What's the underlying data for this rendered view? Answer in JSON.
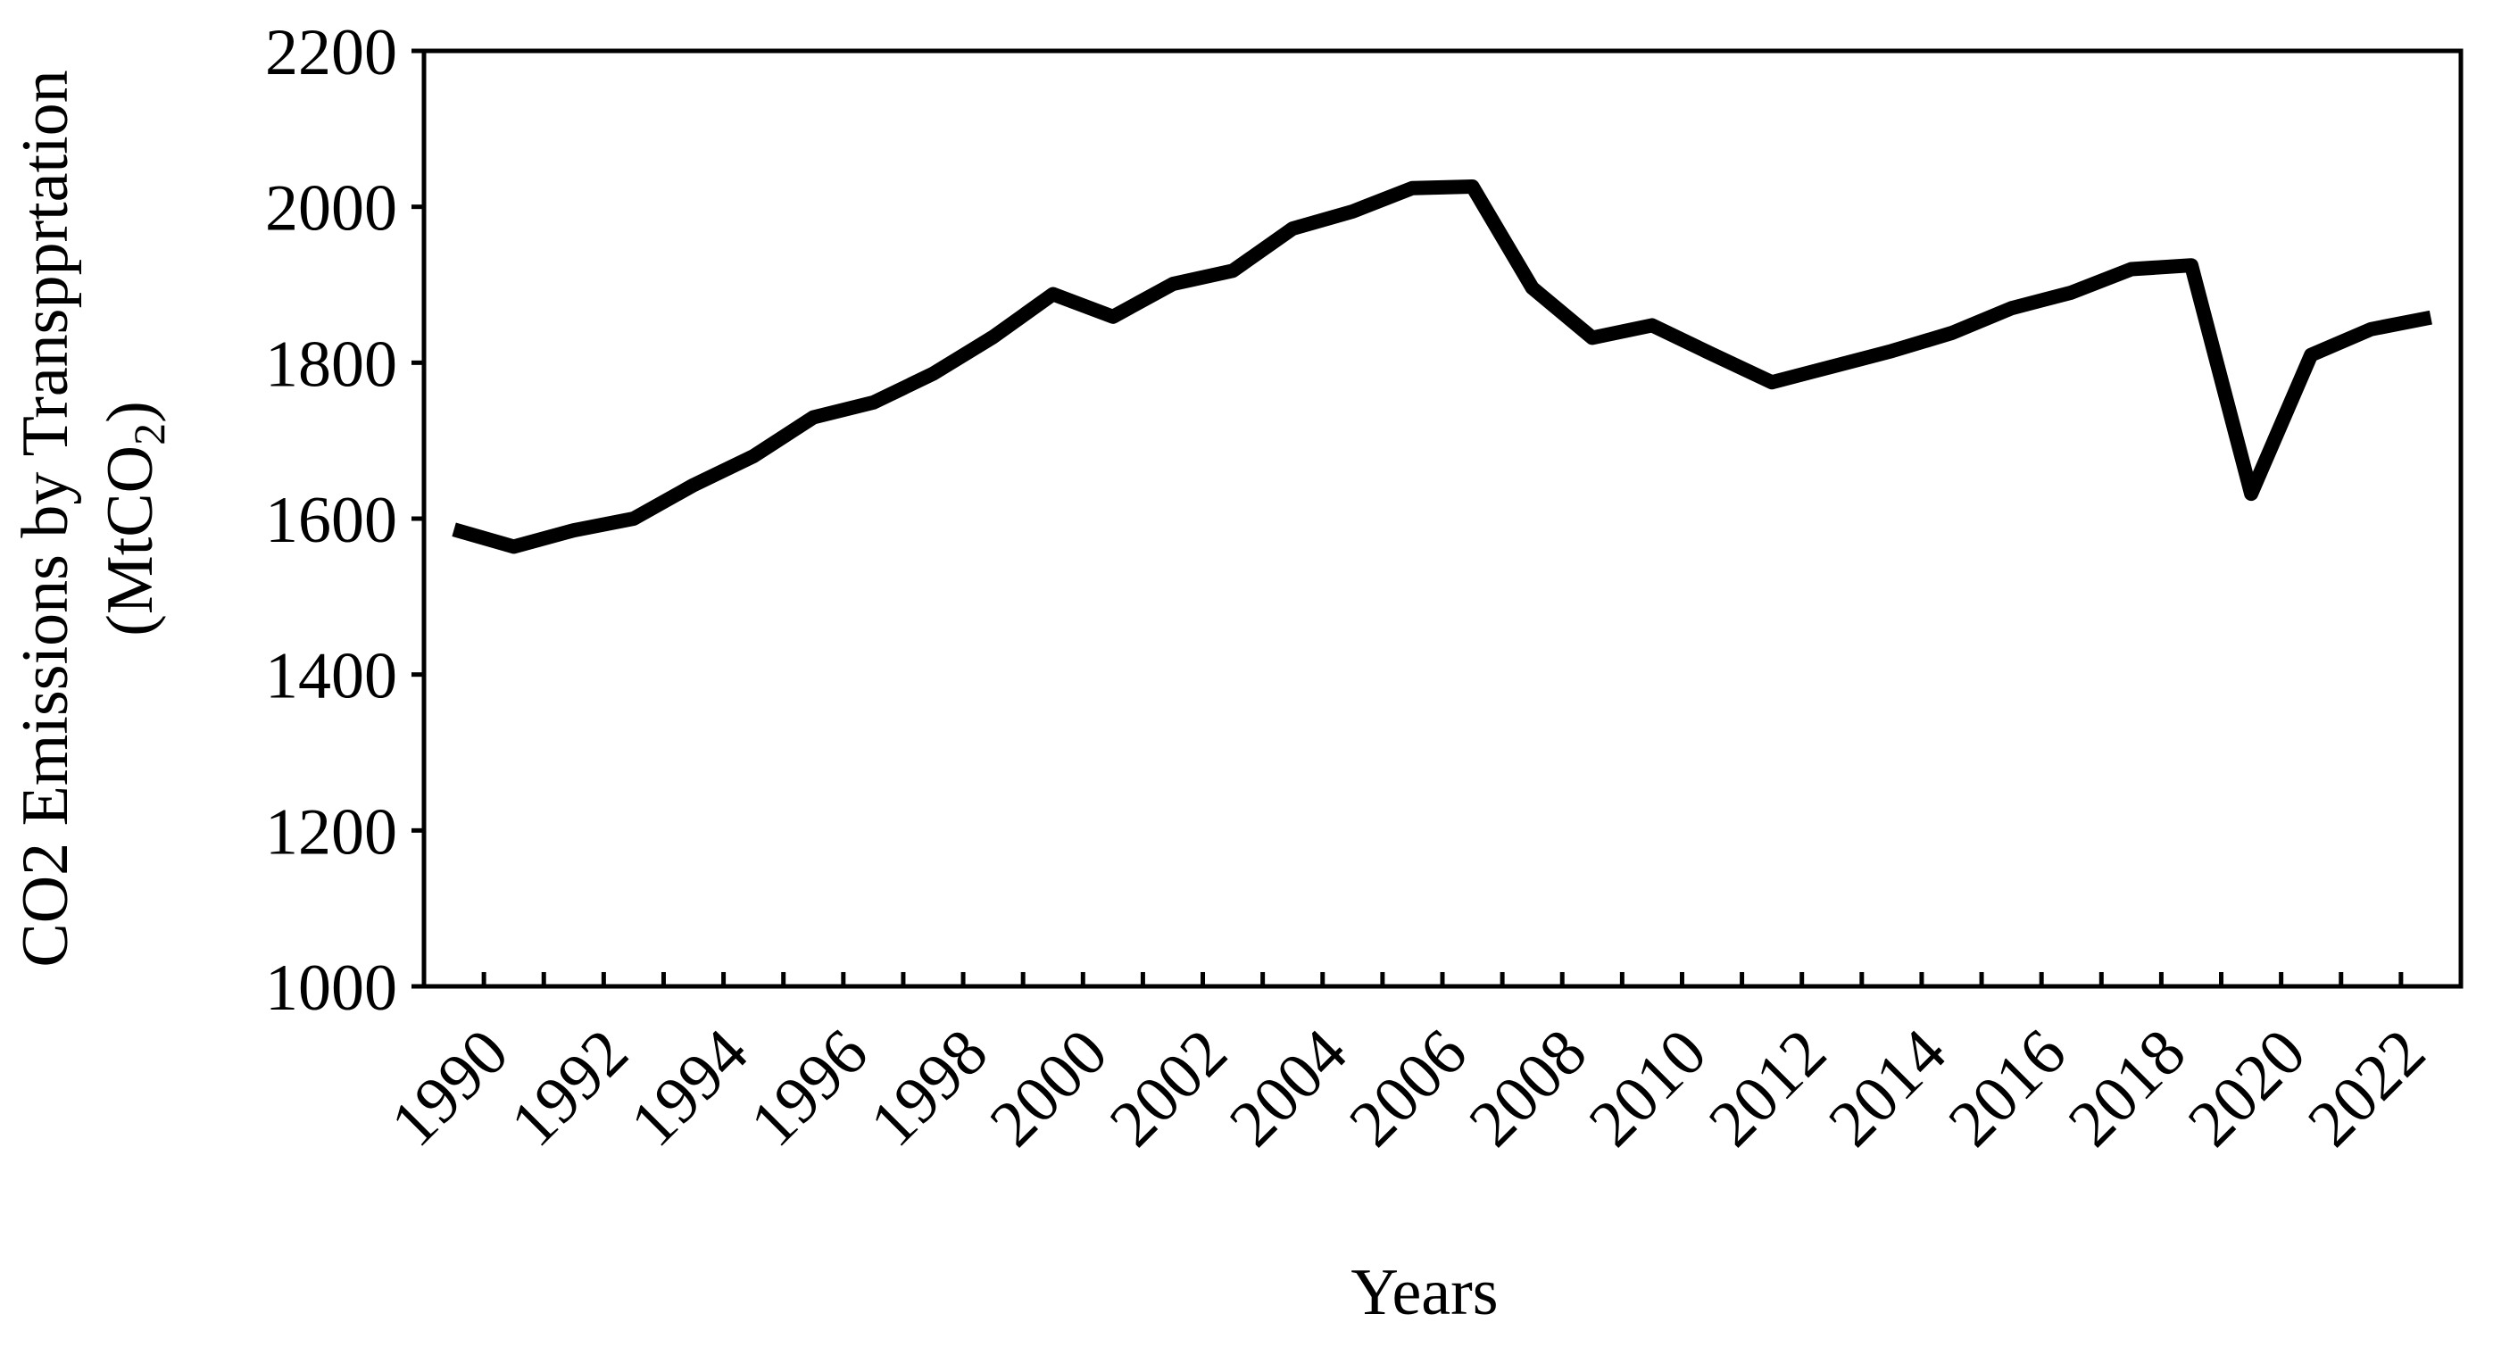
{
  "chart_data": {
    "type": "line",
    "title": "",
    "xlabel": "Years",
    "ylabel_line1": "CO2 Emissions by Transpprtation",
    "ylabel_line2_prefix": "(MtCO",
    "ylabel_line2_sub": "2",
    "ylabel_line2_suffix": ")",
    "ylim": [
      1000,
      2200
    ],
    "yticks": [
      1000,
      1200,
      1400,
      1600,
      1800,
      2000,
      2200
    ],
    "xlim": [
      1990,
      2023
    ],
    "xtick_labels": [
      "1990",
      "1992",
      "1994",
      "1996",
      "1998",
      "2000",
      "2002",
      "2004",
      "2006",
      "2008",
      "2010",
      "2012",
      "2014",
      "2016",
      "2018",
      "2020",
      "2022"
    ],
    "grid": false,
    "legend": "none",
    "line_color": "#000000",
    "series": [
      {
        "x": [
          1990,
          1991,
          1992,
          1993,
          1994,
          1995,
          1996,
          1997,
          1998,
          1999,
          2000,
          2001,
          2002,
          2003,
          2004,
          2005,
          2006,
          2007,
          2008,
          2009,
          2010,
          2011,
          2012,
          2013,
          2014,
          2015,
          2016,
          2017,
          2018,
          2019,
          2020,
          2021,
          2022,
          2023
        ],
        "values": [
          1586,
          1564,
          1585,
          1600,
          1643,
          1680,
          1730,
          1749,
          1786,
          1833,
          1888,
          1859,
          1901,
          1918,
          1972,
          1994,
          2024,
          2026,
          1896,
          1832,
          1848,
          1811,
          1775,
          1795,
          1815,
          1838,
          1870,
          1890,
          1920,
          1925,
          1632,
          1810,
          1843,
          1858
        ]
      }
    ]
  }
}
